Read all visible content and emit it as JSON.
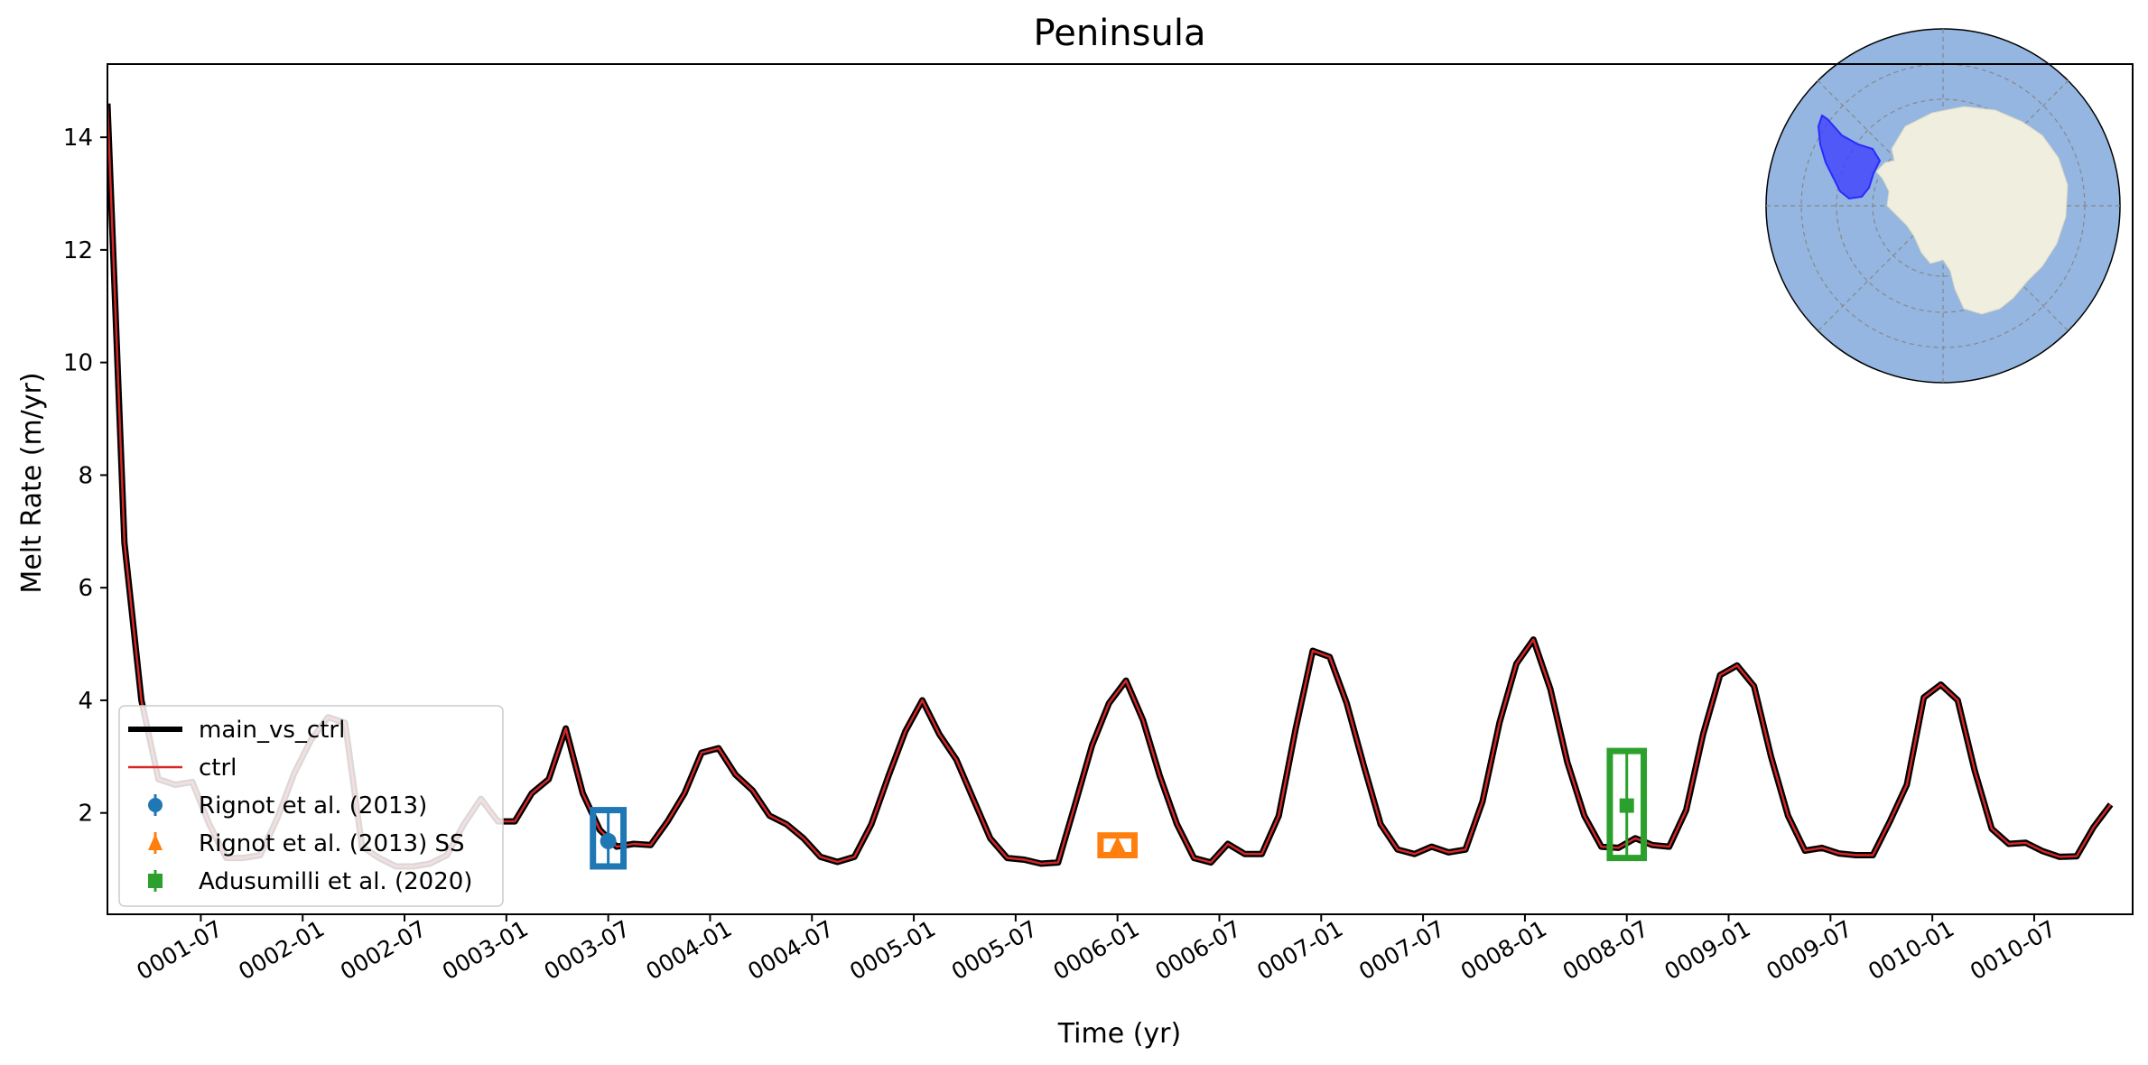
{
  "chart_data": {
    "type": "line",
    "title": "Peninsula",
    "xlabel": "Time (yr)",
    "ylabel": "Melt Rate (m/yr)",
    "ylim": [
      0.2,
      15.3
    ],
    "xlim": [
      0,
      119.3
    ],
    "yticks": [
      2,
      4,
      6,
      8,
      10,
      12,
      14
    ],
    "xticks": [
      {
        "pos": 5.5,
        "label": "0001-07"
      },
      {
        "pos": 11.5,
        "label": "0002-01"
      },
      {
        "pos": 17.5,
        "label": "0002-07"
      },
      {
        "pos": 23.5,
        "label": "0003-01"
      },
      {
        "pos": 29.5,
        "label": "0003-07"
      },
      {
        "pos": 35.5,
        "label": "0004-01"
      },
      {
        "pos": 41.5,
        "label": "0004-07"
      },
      {
        "pos": 47.5,
        "label": "0005-01"
      },
      {
        "pos": 53.5,
        "label": "0005-07"
      },
      {
        "pos": 59.5,
        "label": "0006-01"
      },
      {
        "pos": 65.5,
        "label": "0006-07"
      },
      {
        "pos": 71.5,
        "label": "0007-01"
      },
      {
        "pos": 77.5,
        "label": "0007-07"
      },
      {
        "pos": 83.5,
        "label": "0008-01"
      },
      {
        "pos": 89.5,
        "label": "0008-07"
      },
      {
        "pos": 95.5,
        "label": "0009-01"
      },
      {
        "pos": 101.5,
        "label": "0009-07"
      },
      {
        "pos": 107.5,
        "label": "0010-01"
      },
      {
        "pos": 113.5,
        "label": "0010-07"
      }
    ],
    "series": [
      {
        "name": "main_vs_ctrl",
        "color": "#000000",
        "values": [
          14.6,
          6.8,
          4.0,
          2.6,
          2.5,
          2.55,
          1.8,
          1.2,
          1.2,
          1.25,
          1.9,
          2.7,
          3.3,
          3.7,
          3.6,
          1.4,
          1.2,
          1.05,
          1.05,
          1.1,
          1.25,
          1.8,
          2.25,
          1.85,
          1.85,
          2.35,
          2.6,
          3.5,
          2.35,
          1.7,
          1.4,
          1.45,
          1.43,
          1.85,
          2.35,
          3.07,
          3.15,
          2.68,
          2.4,
          1.95,
          1.8,
          1.55,
          1.22,
          1.13,
          1.22,
          1.8,
          2.65,
          3.45,
          4.0,
          3.4,
          2.95,
          2.25,
          1.55,
          1.2,
          1.17,
          1.1,
          1.12,
          2.15,
          3.2,
          3.95,
          4.35,
          3.65,
          2.65,
          1.8,
          1.2,
          1.12,
          1.45,
          1.27,
          1.27,
          1.95,
          3.5,
          4.88,
          4.77,
          3.95,
          2.85,
          1.8,
          1.35,
          1.27,
          1.4,
          1.3,
          1.35,
          2.2,
          3.6,
          4.65,
          5.08,
          4.2,
          2.9,
          1.95,
          1.4,
          1.38,
          1.55,
          1.43,
          1.4,
          2.05,
          3.4,
          4.45,
          4.62,
          4.25,
          3.0,
          1.95,
          1.33,
          1.38,
          1.28,
          1.25,
          1.25,
          1.85,
          2.5,
          4.05,
          4.28,
          4.0,
          2.75,
          1.72,
          1.45,
          1.47,
          1.32,
          1.22,
          1.23,
          1.75,
          2.15
        ]
      },
      {
        "name": "ctrl",
        "color": "#d62728",
        "values": [
          14.6,
          6.8,
          4.0,
          2.6,
          2.5,
          2.55,
          1.8,
          1.2,
          1.2,
          1.25,
          1.9,
          2.7,
          3.3,
          3.7,
          3.6,
          1.4,
          1.2,
          1.05,
          1.05,
          1.1,
          1.25,
          1.8,
          2.25,
          1.85,
          1.85,
          2.35,
          2.6,
          3.5,
          2.35,
          1.7,
          1.4,
          1.45,
          1.43,
          1.85,
          2.35,
          3.07,
          3.15,
          2.68,
          2.4,
          1.95,
          1.8,
          1.55,
          1.22,
          1.13,
          1.22,
          1.8,
          2.65,
          3.45,
          4.0,
          3.4,
          2.95,
          2.25,
          1.55,
          1.2,
          1.17,
          1.1,
          1.12,
          2.15,
          3.2,
          3.95,
          4.35,
          3.65,
          2.65,
          1.8,
          1.2,
          1.12,
          1.45,
          1.27,
          1.27,
          1.95,
          3.5,
          4.88,
          4.77,
          3.95,
          2.85,
          1.8,
          1.35,
          1.27,
          1.4,
          1.3,
          1.35,
          2.2,
          3.6,
          4.65,
          5.08,
          4.2,
          2.9,
          1.95,
          1.4,
          1.38,
          1.55,
          1.43,
          1.4,
          2.05,
          3.4,
          4.45,
          4.62,
          4.25,
          3.0,
          1.95,
          1.33,
          1.38,
          1.28,
          1.25,
          1.25,
          1.85,
          2.5,
          4.05,
          4.28,
          4.0,
          2.75,
          1.72,
          1.45,
          1.47,
          1.32,
          1.22,
          1.23,
          1.75,
          2.15
        ]
      }
    ],
    "observations": [
      {
        "name": "Rignot et al. (2013)",
        "color": "#1f77b4",
        "marker": "circle",
        "x": 29.5,
        "y": 1.5,
        "yerr_low": 1.05,
        "yerr_high": 2.05,
        "xerr": 0.9
      },
      {
        "name": "Rignot et al. (2013) SS",
        "color": "#ff7f0e",
        "marker": "triangle",
        "x": 59.5,
        "y": 1.42,
        "yerr_low": 1.25,
        "yerr_high": 1.6,
        "xerr": 1.0
      },
      {
        "name": "Adusumilli et al. (2020)",
        "color": "#2ca02c",
        "marker": "square",
        "x": 89.5,
        "y": 2.13,
        "yerr_low": 1.2,
        "yerr_high": 3.1,
        "xerr": 1.0
      }
    ],
    "legend": {
      "placement": "lower-left",
      "entries": [
        "main_vs_ctrl",
        "ctrl",
        "Rignot et al. (2013)",
        "Rignot et al. (2013) SS",
        "Adusumilli et al. (2020)"
      ]
    },
    "inset_map": {
      "description_icon": "antarctica-polar-map-icon",
      "ocean_color": "#94b6e0",
      "land_color": "#efeedf",
      "region_color": "#3a3aff"
    }
  }
}
